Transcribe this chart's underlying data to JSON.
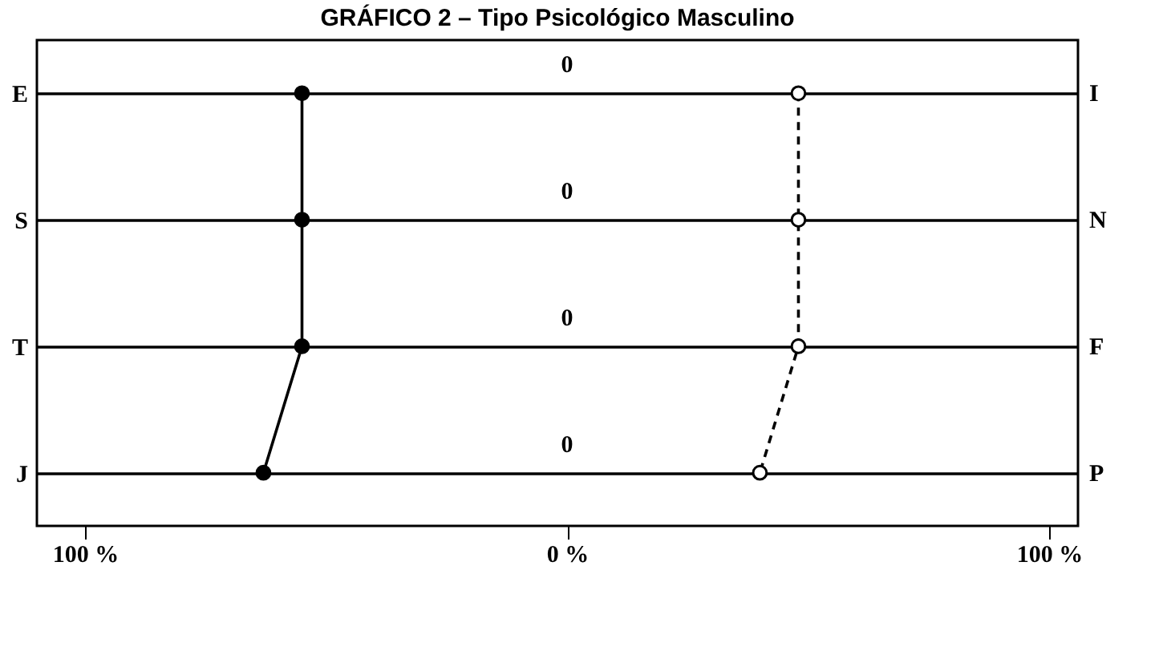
{
  "chart_data": {
    "type": "line",
    "title": "GRÁFICO 2 – Tipo Psicológico Masculino",
    "orientation": "horizontal",
    "categories": [
      "E",
      "S",
      "T",
      "J"
    ],
    "y2_categories": [
      "I",
      "N",
      "F",
      "P"
    ],
    "xlim": [
      -110,
      106
    ],
    "xticks": [
      {
        "value": -100,
        "label": "100 %"
      },
      {
        "value": 0,
        "label": "0 %"
      },
      {
        "value": 100,
        "label": "100 %"
      }
    ],
    "grid": "y",
    "annotations": [
      "0",
      "0",
      "0",
      "0"
    ],
    "series": [
      {
        "color": "#000000",
        "values": [
          -55,
          -55,
          -55,
          -63
        ],
        "line_style": "solid",
        "marker": "circle"
      },
      {
        "color": "#000000",
        "values": [
          48,
          48,
          48,
          40
        ],
        "line_style": "dashed",
        "marker": "circle"
      }
    ]
  }
}
